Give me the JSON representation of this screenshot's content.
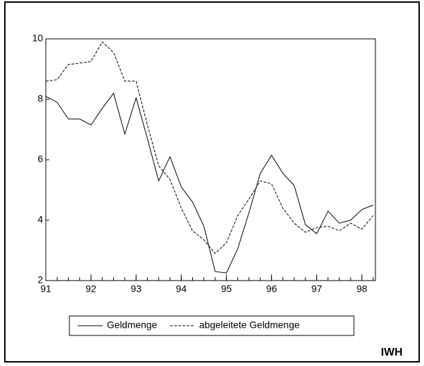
{
  "chart_data": {
    "type": "line",
    "x": [
      91,
      91.25,
      91.5,
      91.75,
      92,
      92.25,
      92.5,
      92.75,
      93,
      93.25,
      93.5,
      93.75,
      94,
      94.25,
      94.5,
      94.75,
      95,
      95.25,
      95.5,
      95.75,
      96,
      96.25,
      96.5,
      96.75,
      97,
      97.25,
      97.5,
      97.75,
      98,
      98.25
    ],
    "series": [
      {
        "name": "Geldmenge",
        "color": "#000000",
        "dash": "solid",
        "values": [
          8.1,
          7.9,
          7.35,
          7.35,
          7.15,
          7.7,
          8.2,
          6.85,
          8.05,
          6.7,
          5.3,
          6.1,
          5.1,
          4.6,
          3.8,
          2.3,
          2.25,
          3.05,
          4.25,
          5.55,
          6.15,
          5.55,
          5.15,
          3.85,
          3.55,
          4.3,
          3.9,
          4.0,
          4.35,
          4.5
        ]
      },
      {
        "name": "abgeleitete Geldmenge",
        "color": "#000000",
        "dash": "dashed",
        "values": [
          8.6,
          8.65,
          9.15,
          9.2,
          9.25,
          9.9,
          9.55,
          8.6,
          8.6,
          7.15,
          5.8,
          5.35,
          4.4,
          3.65,
          3.35,
          2.9,
          3.25,
          4.15,
          4.7,
          5.3,
          5.2,
          4.4,
          3.9,
          3.6,
          3.75,
          3.8,
          3.65,
          3.9,
          3.7,
          4.15
        ]
      }
    ],
    "xlim": [
      91,
      98.3
    ],
    "xticks": [
      91,
      92,
      93,
      94,
      95,
      96,
      97,
      98
    ],
    "ylim": [
      2,
      10
    ],
    "yticks": [
      2,
      4,
      6,
      8,
      10
    ],
    "grid": false,
    "legend": "bottom",
    "source": "IWH"
  }
}
